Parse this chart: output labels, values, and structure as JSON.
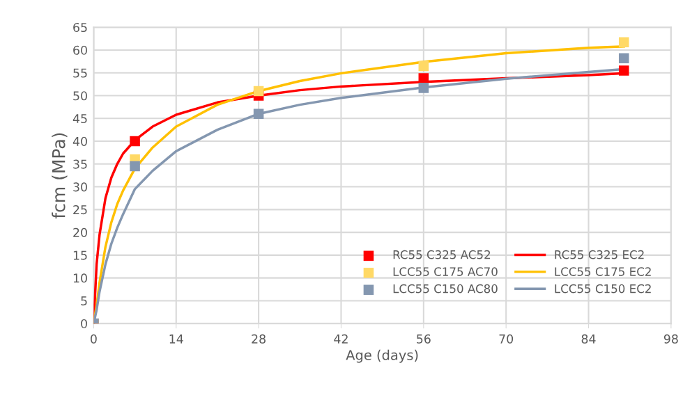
{
  "chart_data": {
    "type": "scatter",
    "xlabel": "Age (days)",
    "ylabel": "fcm (MPa)",
    "xlim": [
      0,
      98
    ],
    "ylim": [
      0,
      65
    ],
    "xticks": [
      0,
      14,
      28,
      42,
      56,
      70,
      84,
      98
    ],
    "yticks": [
      0,
      5,
      10,
      15,
      20,
      25,
      30,
      35,
      40,
      45,
      50,
      55,
      60,
      65
    ],
    "grid": true,
    "legend": "bottom right",
    "marker": "square",
    "series": [
      {
        "name": "RC55 C325 AC52",
        "color": "#ff0000",
        "x": [
          0,
          7,
          28,
          56,
          90
        ],
        "values": [
          0,
          40,
          50,
          53.8,
          55.5
        ]
      },
      {
        "name": "RC55 C325 EC2",
        "type": "line",
        "marker": "none",
        "color": "#ff0000",
        "x": [
          0,
          0.5,
          1,
          2,
          3,
          4,
          5,
          7,
          10,
          14,
          21,
          28,
          35,
          42,
          56,
          70,
          84,
          90
        ],
        "values": [
          0,
          13,
          19.5,
          27.5,
          32,
          35,
          37.3,
          40.2,
          43.2,
          45.8,
          48.5,
          50,
          51.2,
          52,
          53,
          53.8,
          54.5,
          54.9
        ]
      },
      {
        "name": "LCC55 C175 AC70",
        "color": "#ffd966",
        "x": [
          0,
          7,
          28,
          56,
          90
        ],
        "values": [
          0,
          36,
          51,
          56.5,
          61.7
        ]
      },
      {
        "name": "LCC55 C175 EC2",
        "type": "line",
        "marker": "none",
        "color": "#ffc000",
        "x": [
          0,
          0.5,
          1,
          2,
          3,
          4,
          5,
          7,
          10,
          14,
          21,
          28,
          35,
          42,
          56,
          70,
          84,
          90
        ],
        "values": [
          0,
          4,
          9,
          16.8,
          22.2,
          26.2,
          29.2,
          34,
          38.6,
          43.2,
          48,
          51,
          53.2,
          54.9,
          57.4,
          59.3,
          60.5,
          60.8
        ]
      },
      {
        "name": "LCC55 C150 AC80",
        "color": "#8497b0",
        "x": [
          0,
          7,
          28,
          56,
          90
        ],
        "values": [
          0,
          34.5,
          46,
          51.7,
          58.2
        ]
      },
      {
        "name": "LCC55 C150 EC2",
        "type": "line",
        "marker": "none",
        "color": "#8497b0",
        "x": [
          0,
          0.5,
          1,
          2,
          3,
          4,
          5,
          7,
          10,
          14,
          21,
          28,
          35,
          42,
          56,
          70,
          84,
          90
        ],
        "values": [
          0,
          3,
          7,
          13,
          17.5,
          21,
          24,
          29.5,
          33.5,
          37.8,
          42.5,
          46,
          48,
          49.5,
          51.8,
          53.7,
          55.2,
          55.8
        ]
      }
    ]
  }
}
